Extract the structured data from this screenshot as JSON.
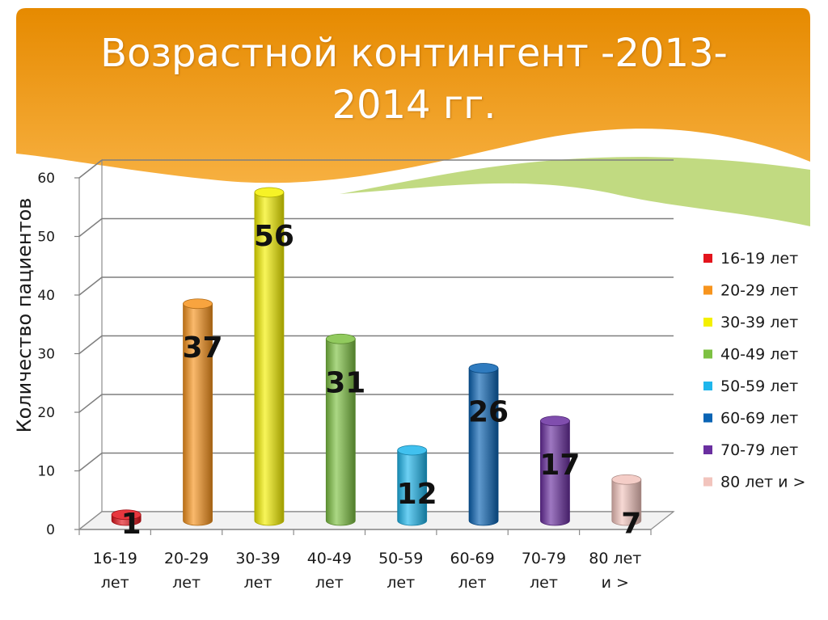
{
  "slide": {
    "title_line1": "Возрастной контингент -2013-",
    "title_line2": "2014 гг.",
    "banner_colors": {
      "top": "#e68a00",
      "bottom": "#f7b040",
      "wave": "#b6d36b"
    }
  },
  "chart_data": {
    "type": "bar",
    "style": "3d-cylinder",
    "title": "",
    "xlabel": "",
    "ylabel": "Количество пациентов",
    "ylim": [
      0,
      60
    ],
    "yticks": [
      0,
      10,
      20,
      30,
      40,
      50,
      60
    ],
    "grid": true,
    "legend_position": "right",
    "categories": [
      [
        "16-19",
        "лет"
      ],
      [
        "20-29",
        "лет"
      ],
      [
        "30-39",
        "лет"
      ],
      [
        "40-49",
        "лет"
      ],
      [
        "50-59",
        "лет"
      ],
      [
        "60-69",
        "лет"
      ],
      [
        "70-79",
        "лет"
      ],
      [
        "80 лет",
        "и >"
      ]
    ],
    "series": [
      {
        "name": "16-19 лет",
        "values": [
          1,
          0,
          0,
          0,
          0,
          0,
          0,
          0
        ],
        "color": "#e3141c"
      },
      {
        "name": "20-29 лет",
        "values": [
          0,
          37,
          0,
          0,
          0,
          0,
          0,
          0
        ],
        "color": "#f7941d"
      },
      {
        "name": "30-39 лет",
        "values": [
          0,
          0,
          56,
          0,
          0,
          0,
          0,
          0
        ],
        "color": "#f4f000"
      },
      {
        "name": "40-49 лет",
        "values": [
          0,
          0,
          0,
          31,
          0,
          0,
          0,
          0
        ],
        "color": "#7dc142"
      },
      {
        "name": "50-59 лет",
        "values": [
          0,
          0,
          0,
          0,
          12,
          0,
          0,
          0
        ],
        "color": "#1fb6ec"
      },
      {
        "name": "60-69 лет",
        "values": [
          0,
          0,
          0,
          0,
          0,
          26,
          0,
          0
        ],
        "color": "#0a64b4"
      },
      {
        "name": "70-79 лет",
        "values": [
          0,
          0,
          0,
          0,
          0,
          0,
          17,
          0
        ],
        "color": "#6a2fa0"
      },
      {
        "name": "80 лет и >",
        "values": [
          0,
          0,
          0,
          0,
          0,
          0,
          0,
          7
        ],
        "color": "#f2c4bd"
      }
    ],
    "data_labels": [
      "1",
      "37",
      "56",
      "31",
      "12",
      "26",
      "17",
      "7"
    ]
  }
}
